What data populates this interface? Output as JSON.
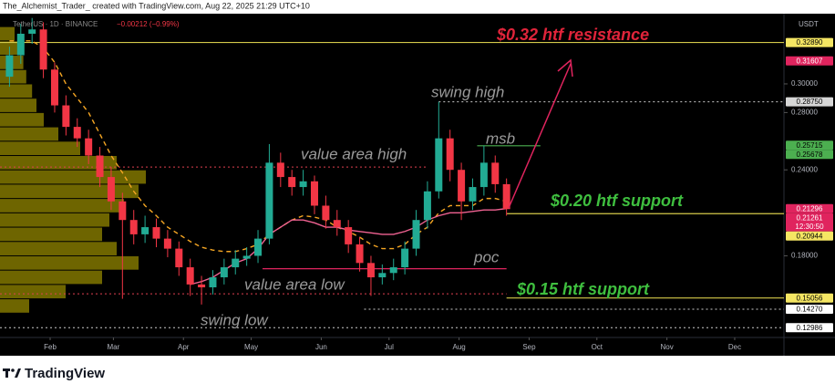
{
  "header": {
    "text": "The_Alchemist_Trader_ created with TradingView.com, Aug 22, 2025 21:29 UTC+10"
  },
  "footer": {
    "brand": "TradingView"
  },
  "chart_data": {
    "type": "candlestick",
    "legend": {
      "symbol": "TetherUS · 1D · BINANCE",
      "change": "−0.00212 (−0.99%)"
    },
    "currency": "USDT",
    "x": [
      13,
      18,
      23,
      28,
      33,
      38,
      43,
      48,
      53,
      58,
      63,
      68,
      73,
      78,
      83,
      88,
      93,
      98,
      103,
      108,
      113,
      118,
      123,
      128,
      133,
      138,
      143,
      148,
      153,
      158,
      163,
      168,
      173,
      178,
      183,
      188,
      193,
      198,
      203,
      208,
      213,
      218,
      223,
      228,
      233
    ],
    "open": [
      0.305,
      0.32,
      0.335,
      0.338,
      0.31,
      0.285,
      0.27,
      0.262,
      0.25,
      0.235,
      0.218,
      0.205,
      0.195,
      0.2,
      0.192,
      0.185,
      0.172,
      0.16,
      0.158,
      0.165,
      0.172,
      0.178,
      0.18,
      0.192,
      0.245,
      0.235,
      0.228,
      0.232,
      0.215,
      0.205,
      0.2,
      0.188,
      0.175,
      0.165,
      0.168,
      0.172,
      0.185,
      0.205,
      0.225,
      0.262,
      0.24,
      0.218,
      0.228,
      0.245,
      0.23
    ],
    "high": [
      0.326,
      0.342,
      0.346,
      0.343,
      0.315,
      0.292,
      0.276,
      0.268,
      0.256,
      0.242,
      0.224,
      0.212,
      0.208,
      0.206,
      0.198,
      0.19,
      0.178,
      0.166,
      0.17,
      0.178,
      0.184,
      0.186,
      0.198,
      0.258,
      0.252,
      0.24,
      0.24,
      0.236,
      0.222,
      0.212,
      0.205,
      0.193,
      0.18,
      0.174,
      0.178,
      0.19,
      0.212,
      0.232,
      0.2875,
      0.268,
      0.245,
      0.234,
      0.257,
      0.25,
      0.234
    ],
    "low": [
      0.298,
      0.314,
      0.328,
      0.304,
      0.28,
      0.264,
      0.256,
      0.244,
      0.228,
      0.212,
      0.15,
      0.188,
      0.189,
      0.186,
      0.179,
      0.166,
      0.152,
      0.146,
      0.153,
      0.16,
      0.167,
      0.173,
      0.175,
      0.188,
      0.228,
      0.222,
      0.222,
      0.209,
      0.199,
      0.194,
      0.182,
      0.169,
      0.152,
      0.16,
      0.163,
      0.167,
      0.18,
      0.199,
      0.22,
      0.232,
      0.205,
      0.212,
      0.222,
      0.224,
      0.208
    ],
    "close": [
      0.32,
      0.335,
      0.338,
      0.31,
      0.285,
      0.27,
      0.262,
      0.25,
      0.235,
      0.218,
      0.205,
      0.195,
      0.2,
      0.192,
      0.185,
      0.172,
      0.16,
      0.158,
      0.165,
      0.172,
      0.178,
      0.18,
      0.192,
      0.245,
      0.235,
      0.228,
      0.232,
      0.215,
      0.205,
      0.2,
      0.188,
      0.175,
      0.165,
      0.168,
      0.172,
      0.185,
      0.205,
      0.225,
      0.262,
      0.24,
      0.218,
      0.228,
      0.245,
      0.23,
      0.2126
    ],
    "up_color": "#22ab94",
    "down_color": "#f23645",
    "overlays": [
      {
        "color": "#f5a623",
        "dash": true,
        "values": [
          0.33,
          0.33,
          0.33,
          0.325,
          0.315,
          0.3,
          0.29,
          0.28,
          0.265,
          0.25,
          0.238,
          0.225,
          0.215,
          0.208,
          0.2,
          0.195,
          0.19,
          0.186,
          0.184,
          0.183,
          0.183,
          0.185,
          0.188,
          0.195,
          0.2,
          0.205,
          0.208,
          0.207,
          0.205,
          0.2,
          0.197,
          0.193,
          0.188,
          0.185,
          0.185,
          0.188,
          0.195,
          0.2,
          0.21,
          0.215,
          0.215,
          0.215,
          0.22,
          0.22,
          0.218
        ]
      },
      {
        "color": "#f06292",
        "dash": false,
        "values": [
          null,
          null,
          null,
          null,
          null,
          null,
          null,
          null,
          null,
          null,
          null,
          null,
          null,
          null,
          null,
          null,
          0.16,
          0.162,
          0.165,
          0.17,
          0.175,
          0.178,
          0.185,
          0.195,
          0.2,
          0.205,
          0.205,
          0.203,
          0.2,
          0.2,
          0.198,
          0.197,
          0.196,
          0.195,
          0.195,
          0.197,
          0.2,
          0.205,
          0.208,
          0.21,
          0.21,
          0.211,
          0.212,
          0.212,
          0.213
        ]
      }
    ],
    "volume_profile": {
      "color": "#c9b800",
      "bins": [
        0.14,
        0.15,
        0.16,
        0.17,
        0.18,
        0.19,
        0.2,
        0.21,
        0.22,
        0.23,
        0.24,
        0.25,
        0.26,
        0.27,
        0.28,
        0.29,
        0.3,
        0.31,
        0.32,
        0.33,
        0.34
      ],
      "counts": [
        20,
        45,
        70,
        95,
        80,
        70,
        75,
        85,
        95,
        100,
        80,
        55,
        40,
        30,
        25,
        22,
        18,
        16,
        14,
        10
      ]
    },
    "levels": [
      {
        "value": 0.3289,
        "color": "#d4c94a",
        "style": "solid"
      },
      {
        "value": 0.2875,
        "color": "#cccccc",
        "style": "dotted",
        "from": 203
      },
      {
        "value": 0.2568,
        "color": "#4caf50",
        "style": "solid",
        "from": 220,
        "to": 248
      },
      {
        "value": 0.242,
        "color": "#e04050",
        "style": "dotted",
        "to": 198
      },
      {
        "value": 0.2094,
        "color": "#d4c94a",
        "style": "solid",
        "from": 233
      },
      {
        "value": 0.171,
        "color": "#e0245e",
        "style": "solid",
        "from": 125,
        "to": 233
      },
      {
        "value": 0.1535,
        "color": "#e04050",
        "style": "dotted",
        "to": 233
      },
      {
        "value": 0.15056,
        "color": "#d4c94a",
        "style": "solid",
        "from": 233
      },
      {
        "value": 0.1427,
        "color": "#cccccc",
        "style": "dotted",
        "from": 170
      },
      {
        "value": 0.12986,
        "color": "#cccccc",
        "style": "dotted"
      }
    ],
    "xlim": [
      8.8,
      355.8
    ],
    "ylim": [
      0.123,
      0.349
    ],
    "xticks": [
      {
        "value": 31,
        "label": "Feb"
      },
      {
        "value": 59,
        "label": "Mar"
      },
      {
        "value": 90,
        "label": "Apr"
      },
      {
        "value": 120,
        "label": "May"
      },
      {
        "value": 151,
        "label": "Jun"
      },
      {
        "value": 181,
        "label": "Jul"
      },
      {
        "value": 212,
        "label": "Aug"
      },
      {
        "value": 243,
        "label": "Sep"
      },
      {
        "value": 273,
        "label": "Oct"
      },
      {
        "value": 304,
        "label": "Nov"
      },
      {
        "value": 334,
        "label": "Dec"
      }
    ],
    "yticks": [
      {
        "value": 0.3,
        "label": "0.30000"
      },
      {
        "value": 0.28,
        "label": "0.28000"
      },
      {
        "value": 0.24,
        "label": "0.24000"
      },
      {
        "value": 0.18,
        "label": "0.18000"
      }
    ],
    "price_labels": [
      {
        "value": 0.3289,
        "label": "0.32890",
        "color": "#f5e663",
        "text_color": "#000000"
      },
      {
        "value": 0.31607,
        "label": "0.31607",
        "color": "#e0245e",
        "text_color": "#ffffff"
      },
      {
        "value": 0.2875,
        "label": "0.28750",
        "color": "#d6d6d6",
        "text_color": "#000000"
      },
      {
        "value": 0.25715,
        "label": "0.25715",
        "color": "#4caf50",
        "text_color": "#000000"
      },
      {
        "value": 0.25678,
        "label": "0.25678",
        "color": "#4caf50",
        "text_color": "#000000"
      },
      {
        "value": 0.21296,
        "label": "0.21296",
        "color": "#e0245e",
        "text_color": "#ffffff"
      },
      {
        "value": 0.21261,
        "label": "0.21261",
        "color": "#e0245e",
        "text_color": "#ffffff",
        "countdown": "12:30:50"
      },
      {
        "value": 0.20944,
        "label": "0.20944",
        "color": "#f5e663",
        "text_color": "#000000"
      },
      {
        "value": 0.15056,
        "label": "0.15056",
        "color": "#f5e663",
        "text_color": "#000000"
      },
      {
        "value": 0.1427,
        "label": "0.14270",
        "color": "#ffffff",
        "text_color": "#000000"
      },
      {
        "value": 0.12986,
        "label": "0.12986",
        "color": "#ffffff",
        "text_color": "#000000"
      }
    ],
    "annotations": [
      "$0.32 htf resistance",
      "swing high",
      "msb",
      "value area high",
      "$0.20 htf support",
      "poc",
      "value area low",
      "$0.15 htf support",
      "swing low"
    ]
  }
}
